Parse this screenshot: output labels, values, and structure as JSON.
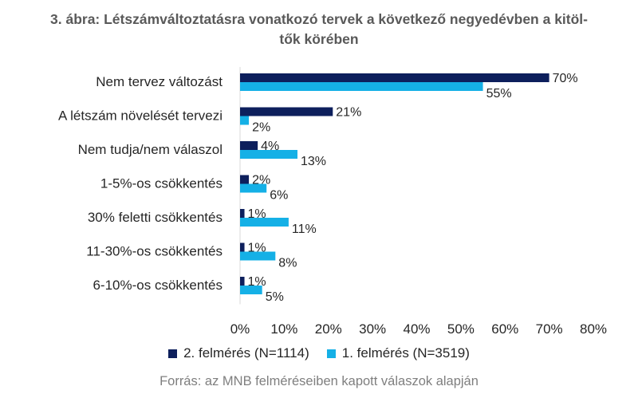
{
  "title_line1": "3. ábra: Létszámváltoztatásra vonatkozó tervek a következő negyedévben a kitöl-",
  "title_line2": "tők körében",
  "source": "Forrás: az MNB felméréseiben kapott válaszok alapján",
  "colors": {
    "series2": "#0d1f5c",
    "series1": "#15b0e6"
  },
  "chart_data": {
    "type": "bar",
    "orientation": "horizontal",
    "categories": [
      "Nem tervez változást",
      "A létszám növelését tervezi",
      "Nem tudja/nem válaszol",
      "1-5%-os csökkentés",
      "30% feletti csökkentés",
      "11-30%-os csökkentés",
      "6-10%-os csökkentés"
    ],
    "series": [
      {
        "name": "2. felmérés (N=1114)",
        "values": [
          70,
          21,
          4,
          2,
          1,
          1,
          1
        ],
        "labels": [
          "70%",
          "21%",
          "4%",
          "2%",
          "1%",
          "1%",
          "1%"
        ]
      },
      {
        "name": "1. felmérés (N=3519)",
        "values": [
          55,
          2,
          13,
          6,
          11,
          8,
          5
        ],
        "labels": [
          "55%",
          "2%",
          "13%",
          "6%",
          "11%",
          "8%",
          "5%"
        ]
      }
    ],
    "xlim": [
      0,
      80
    ],
    "xticks": [
      "0%",
      "10%",
      "20%",
      "30%",
      "40%",
      "50%",
      "60%",
      "70%",
      "80%"
    ],
    "legend_position": "bottom",
    "grid": false
  }
}
